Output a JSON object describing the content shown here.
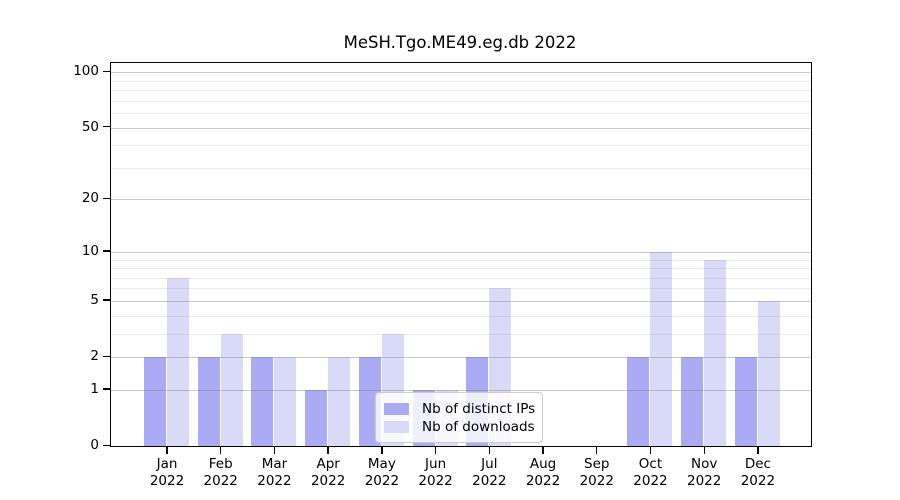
{
  "chart_data": {
    "type": "bar",
    "title": "MeSH.Tgo.ME49.eg.db 2022",
    "categories": [
      "Jan",
      "Feb",
      "Mar",
      "Apr",
      "May",
      "Jun",
      "Jul",
      "Aug",
      "Sep",
      "Oct",
      "Nov",
      "Dec"
    ],
    "year_label": "2022",
    "series": [
      {
        "name": "Nb of distinct IPs",
        "color": "#aaaaf5",
        "values": [
          2,
          2,
          2,
          1,
          2,
          1,
          2,
          0,
          0,
          2,
          2,
          2
        ]
      },
      {
        "name": "Nb of downloads",
        "color": "#d9d9f8",
        "values": [
          7,
          3,
          2,
          2,
          3,
          1,
          6,
          0,
          0,
          10,
          9,
          5
        ]
      }
    ],
    "y_axis": {
      "scale": "log10(value+1)",
      "major_ticks": [
        0,
        1,
        2,
        5,
        10,
        20,
        50,
        100
      ],
      "minor_gridlines": [
        3,
        4,
        6,
        7,
        8,
        9,
        30,
        40,
        60,
        70,
        80,
        90
      ],
      "max_value": 100
    },
    "legend": {
      "position": "bottom-center",
      "entries": [
        "Nb of distinct IPs",
        "Nb of downloads"
      ]
    },
    "grid": true
  }
}
